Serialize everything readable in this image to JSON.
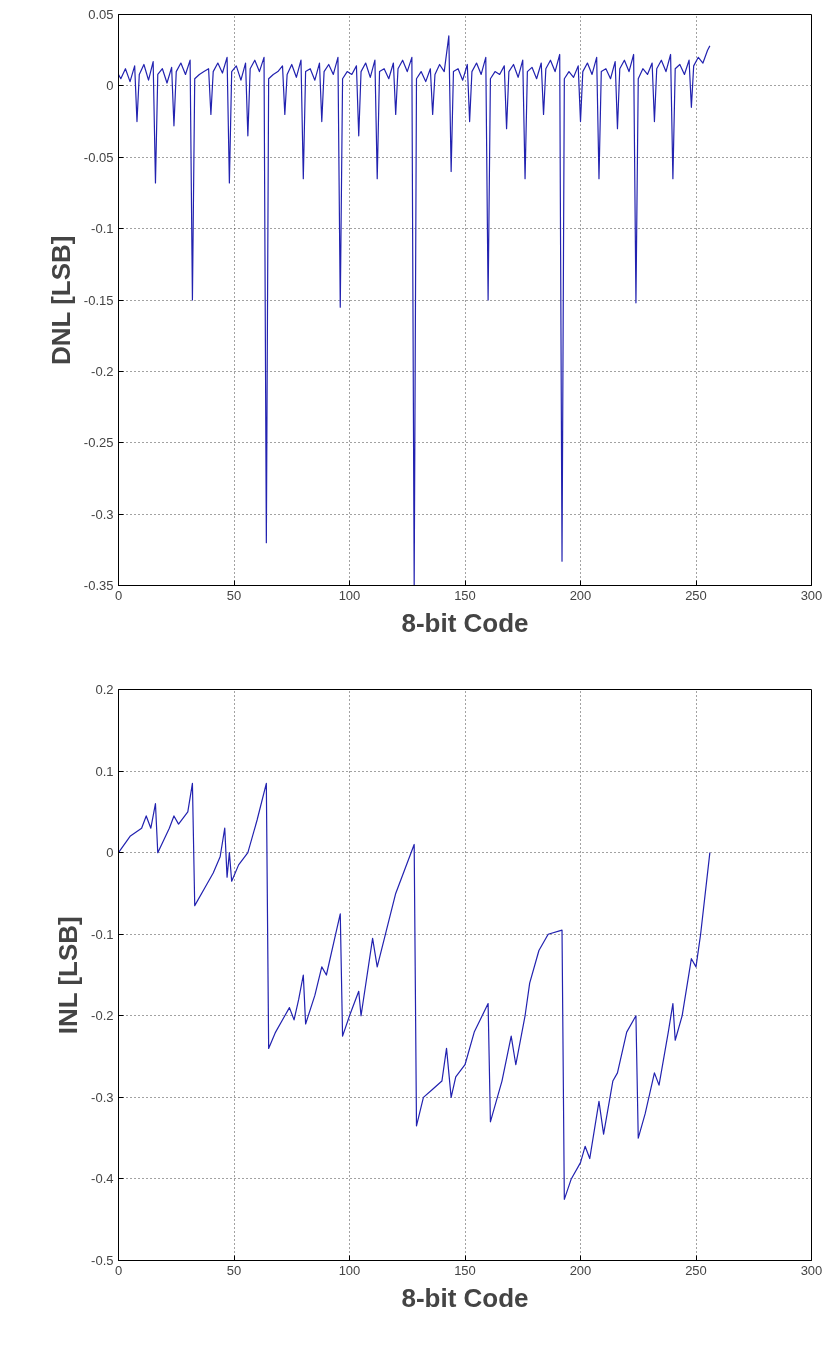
{
  "chart_data": [
    {
      "type": "line",
      "xlabel": "8-bit Code",
      "ylabel": "DNL [LSB]",
      "xlim": [
        0,
        300
      ],
      "ylim": [
        -0.35,
        0.05
      ],
      "xticks": [
        0,
        50,
        100,
        150,
        200,
        250,
        300
      ],
      "yticks": [
        -0.35,
        -0.3,
        -0.25,
        -0.2,
        -0.15,
        -0.1,
        -0.05,
        0,
        0.05
      ],
      "grid": true,
      "line_style": "solid",
      "series": [
        {
          "color": "#2222b0",
          "x": [
            0,
            1,
            3,
            5,
            7,
            8,
            9,
            11,
            13,
            15,
            16,
            17,
            19,
            21,
            23,
            24,
            25,
            27,
            29,
            31,
            32,
            33,
            35,
            37,
            39,
            40,
            41,
            43,
            45,
            47,
            48,
            49,
            51,
            53,
            55,
            56,
            57,
            59,
            61,
            63,
            64,
            65,
            67,
            69,
            71,
            72,
            73,
            75,
            77,
            79,
            80,
            81,
            83,
            85,
            87,
            88,
            89,
            91,
            93,
            95,
            96,
            97,
            99,
            101,
            103,
            104,
            105,
            107,
            109,
            111,
            112,
            113,
            115,
            117,
            119,
            120,
            121,
            123,
            125,
            127,
            128,
            129,
            131,
            133,
            135,
            136,
            137,
            139,
            141,
            143,
            144,
            145,
            147,
            149,
            151,
            152,
            153,
            155,
            157,
            159,
            160,
            161,
            163,
            165,
            167,
            168,
            169,
            171,
            173,
            175,
            176,
            177,
            179,
            181,
            183,
            184,
            185,
            187,
            189,
            191,
            192,
            193,
            195,
            197,
            199,
            200,
            201,
            203,
            205,
            207,
            208,
            209,
            211,
            213,
            215,
            216,
            217,
            219,
            221,
            223,
            224,
            225,
            227,
            229,
            231,
            232,
            233,
            235,
            237,
            239,
            240,
            241,
            243,
            245,
            247,
            248,
            249,
            251,
            253,
            255,
            256
          ],
          "values": [
            0.008,
            0.005,
            0.012,
            0.003,
            0.014,
            -0.025,
            0.008,
            0.015,
            0.004,
            0.017,
            -0.068,
            0.008,
            0.012,
            0.002,
            0.013,
            -0.028,
            0.01,
            0.016,
            0.008,
            0.018,
            -0.15,
            0.005,
            0.008,
            0.01,
            0.012,
            -0.02,
            0.01,
            0.016,
            0.009,
            0.02,
            -0.068,
            0.01,
            0.014,
            0.004,
            0.016,
            -0.035,
            0.012,
            0.018,
            0.01,
            0.02,
            -0.32,
            0.005,
            0.008,
            0.01,
            0.014,
            -0.02,
            0.008,
            0.015,
            0.006,
            0.018,
            -0.065,
            0.01,
            0.012,
            0.004,
            0.016,
            -0.025,
            0.01,
            0.015,
            0.008,
            0.02,
            -0.155,
            0.005,
            0.01,
            0.008,
            0.014,
            -0.035,
            0.01,
            0.016,
            0.006,
            0.018,
            -0.065,
            0.01,
            0.012,
            0.005,
            0.016,
            -0.02,
            0.012,
            0.018,
            0.01,
            0.02,
            -0.35,
            0.005,
            0.01,
            0.003,
            0.012,
            -0.02,
            0.008,
            0.015,
            0.01,
            0.035,
            -0.06,
            0.01,
            0.012,
            0.004,
            0.015,
            -0.025,
            0.01,
            0.016,
            0.008,
            0.02,
            -0.15,
            0.005,
            0.01,
            0.008,
            0.014,
            -0.03,
            0.01,
            0.015,
            0.006,
            0.018,
            -0.065,
            0.01,
            0.013,
            0.005,
            0.016,
            -0.02,
            0.012,
            0.018,
            0.01,
            0.022,
            -0.333,
            0.005,
            0.01,
            0.006,
            0.014,
            -0.025,
            0.01,
            0.016,
            0.008,
            0.02,
            -0.065,
            0.01,
            0.012,
            0.005,
            0.017,
            -0.03,
            0.012,
            0.018,
            0.01,
            0.022,
            -0.152,
            0.005,
            0.012,
            0.008,
            0.016,
            -0.025,
            0.012,
            0.018,
            0.01,
            0.022,
            -0.065,
            0.012,
            0.015,
            0.008,
            0.018,
            -0.015,
            0.014,
            0.02,
            0.016,
            0.025,
            0.028
          ]
        }
      ]
    },
    {
      "type": "line",
      "xlabel": "8-bit Code",
      "ylabel": "INL [LSB]",
      "xlim": [
        0,
        300
      ],
      "ylim": [
        -0.5,
        0.2
      ],
      "xticks": [
        0,
        50,
        100,
        150,
        200,
        250,
        300
      ],
      "yticks": [
        -0.5,
        -0.4,
        -0.3,
        -0.2,
        -0.1,
        0,
        0.1,
        0.2
      ],
      "grid": true,
      "line_style": "solid",
      "series": [
        {
          "color": "#2222b0",
          "x": [
            0,
            5,
            10,
            12,
            14,
            16,
            17,
            22,
            24,
            26,
            30,
            32,
            33,
            38,
            41,
            44,
            46,
            47,
            48,
            49,
            52,
            56,
            60,
            64,
            65,
            68,
            72,
            74,
            76,
            78,
            80,
            81,
            85,
            88,
            90,
            94,
            96,
            97,
            100,
            102,
            104,
            105,
            110,
            112,
            116,
            120,
            124,
            128,
            129,
            132,
            136,
            140,
            142,
            144,
            146,
            150,
            154,
            160,
            161,
            164,
            166,
            170,
            172,
            176,
            178,
            182,
            186,
            192,
            193,
            196,
            200,
            202,
            204,
            208,
            210,
            214,
            216,
            220,
            224,
            225,
            228,
            232,
            234,
            238,
            240,
            241,
            244,
            248,
            250,
            252,
            256
          ],
          "values": [
            0,
            0.02,
            0.03,
            0.045,
            0.03,
            0.06,
            0.0,
            0.03,
            0.045,
            0.035,
            0.05,
            0.085,
            -0.065,
            -0.04,
            -0.025,
            -0.005,
            0.03,
            -0.03,
            0.0,
            -0.035,
            -0.015,
            0.0,
            0.04,
            0.085,
            -0.24,
            -0.22,
            -0.2,
            -0.19,
            -0.205,
            -0.18,
            -0.15,
            -0.21,
            -0.175,
            -0.14,
            -0.15,
            -0.1,
            -0.075,
            -0.225,
            -0.2,
            -0.185,
            -0.17,
            -0.2,
            -0.105,
            -0.14,
            -0.095,
            -0.05,
            -0.02,
            0.01,
            -0.335,
            -0.3,
            -0.29,
            -0.28,
            -0.24,
            -0.3,
            -0.275,
            -0.26,
            -0.22,
            -0.185,
            -0.33,
            -0.3,
            -0.28,
            -0.225,
            -0.26,
            -0.2,
            -0.16,
            -0.12,
            -0.1,
            -0.095,
            -0.425,
            -0.4,
            -0.38,
            -0.36,
            -0.375,
            -0.305,
            -0.345,
            -0.28,
            -0.27,
            -0.22,
            -0.2,
            -0.35,
            -0.32,
            -0.27,
            -0.285,
            -0.22,
            -0.185,
            -0.23,
            -0.2,
            -0.13,
            -0.14,
            -0.1,
            0.0
          ]
        }
      ]
    }
  ]
}
